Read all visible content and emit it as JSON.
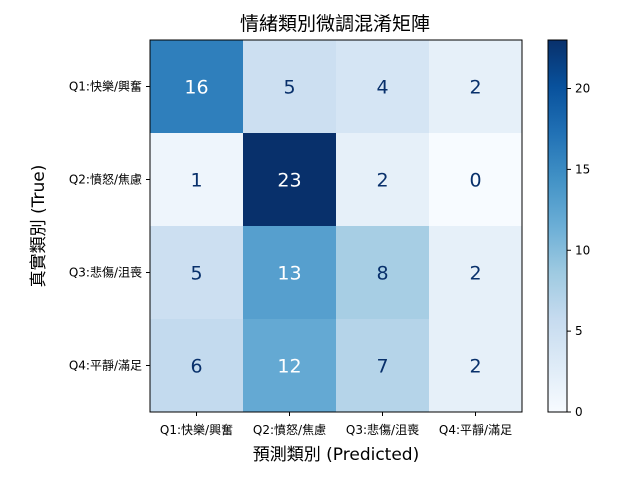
{
  "chart_data": {
    "type": "heatmap",
    "title": "情緒類別微調混淆矩陣",
    "xlabel": "預測類別 (Predicted)",
    "ylabel": "真實類別 (True)",
    "x_categories": [
      "Q1:快樂/興奮",
      "Q2:憤怒/焦慮",
      "Q3:悲傷/沮喪",
      "Q4:平靜/滿足"
    ],
    "y_categories": [
      "Q1:快樂/興奮",
      "Q2:憤怒/焦慮",
      "Q3:悲傷/沮喪",
      "Q4:平靜/滿足"
    ],
    "values": [
      [
        16,
        5,
        4,
        2
      ],
      [
        1,
        23,
        2,
        0
      ],
      [
        5,
        13,
        8,
        2
      ],
      [
        6,
        12,
        7,
        2
      ]
    ],
    "colormap": "Blues",
    "colorbar": {
      "min": 0,
      "max": 23,
      "ticks": [
        0,
        5,
        10,
        15,
        20
      ]
    }
  }
}
